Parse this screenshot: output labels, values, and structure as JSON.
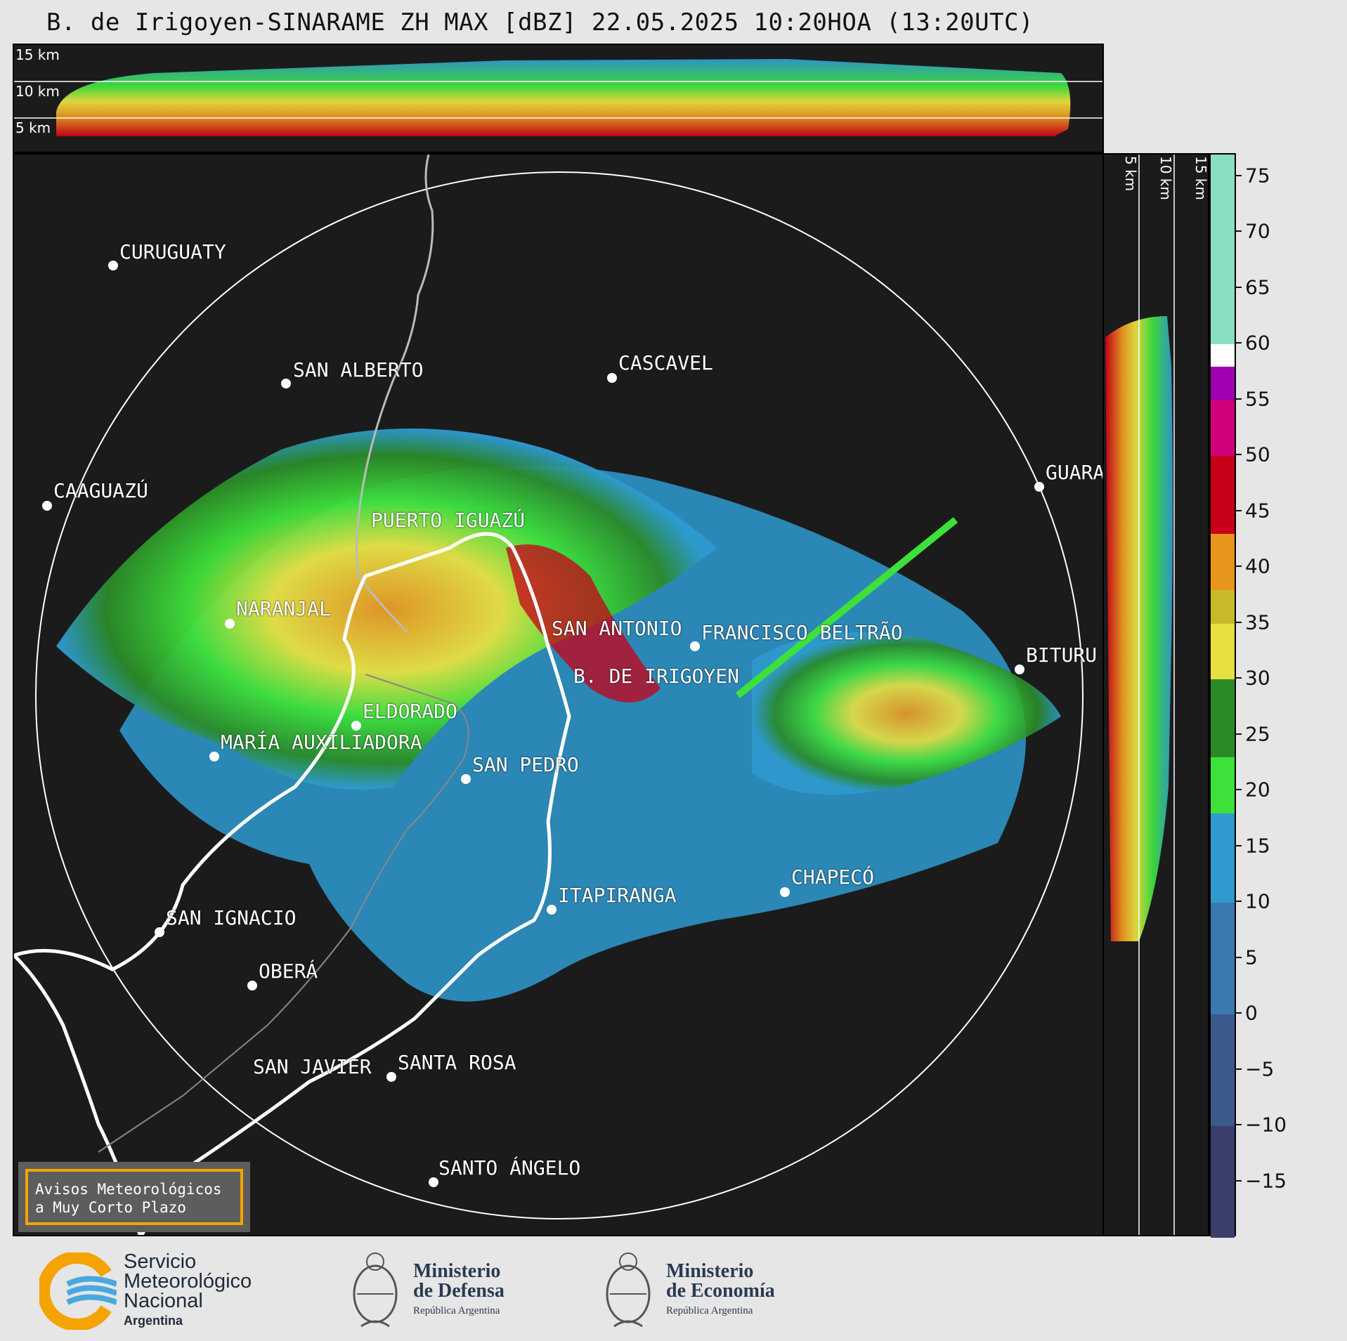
{
  "title": "B. de Irigoyen-SINARAME ZH MAX [dBZ] 22.05.2025 10:20HOA (13:20UTC)",
  "top_section": {
    "labels": [
      "15 km",
      "10 km",
      "5 km"
    ]
  },
  "right_section": {
    "labels": [
      "5 km",
      "10 km",
      "15 km"
    ]
  },
  "cities": [
    {
      "name": "CURUGUATY",
      "lon_lat_hint": "nw"
    },
    {
      "name": "SAN ALBERTO"
    },
    {
      "name": "CASCAVEL"
    },
    {
      "name": "CAAGUAZÚ"
    },
    {
      "name": "GUARA"
    },
    {
      "name": "PUERTO IGUAZÚ"
    },
    {
      "name": "NARANJAL"
    },
    {
      "name": "SAN ANTONIO"
    },
    {
      "name": "FRANCISCO BELTRÃO"
    },
    {
      "name": "BITURU"
    },
    {
      "name": "B. DE IRIGOYEN"
    },
    {
      "name": "ELDORADO"
    },
    {
      "name": "MARÍA AUXILIADORA"
    },
    {
      "name": "SAN PEDRO"
    },
    {
      "name": "CHAPECÓ"
    },
    {
      "name": "ITAPIRANGA"
    },
    {
      "name": "SAN IGNACIO"
    },
    {
      "name": "OBERÁ"
    },
    {
      "name": "SAN JAVIER"
    },
    {
      "name": "SANTA ROSA"
    },
    {
      "name": "SANTO ÁNGELO"
    }
  ],
  "colorbar": {
    "ticks": [
      "75",
      "70",
      "65",
      "60",
      "55",
      "50",
      "45",
      "40",
      "35",
      "30",
      "25",
      "20",
      "15",
      "10",
      "5",
      "0",
      "−5",
      "−10",
      "−15"
    ],
    "tick_values": [
      75,
      70,
      65,
      60,
      55,
      50,
      45,
      40,
      35,
      30,
      25,
      20,
      15,
      10,
      5,
      0,
      -5,
      -10,
      -15
    ],
    "range": [
      -20,
      77
    ],
    "bands": [
      {
        "from": -20,
        "to": -10,
        "color": "#3a3f6b"
      },
      {
        "from": -10,
        "to": 0,
        "color": "#3b5a8c"
      },
      {
        "from": 0,
        "to": 10,
        "color": "#3a78b0"
      },
      {
        "from": 10,
        "to": 18,
        "color": "#2e9ad0"
      },
      {
        "from": 18,
        "to": 23,
        "color": "#3ee03a"
      },
      {
        "from": 23,
        "to": 30,
        "color": "#2a8a28"
      },
      {
        "from": 30,
        "to": 35,
        "color": "#e8e040"
      },
      {
        "from": 35,
        "to": 38,
        "color": "#c8b82a"
      },
      {
        "from": 38,
        "to": 43,
        "color": "#e8951e"
      },
      {
        "from": 43,
        "to": 50,
        "color": "#c80018"
      },
      {
        "from": 50,
        "to": 55,
        "color": "#d0007a"
      },
      {
        "from": 55,
        "to": 58,
        "color": "#a000b0"
      },
      {
        "from": 58,
        "to": 60,
        "color": "#ffffff"
      },
      {
        "from": 60,
        "to": 77,
        "color": "#88e0c0"
      }
    ]
  },
  "warning": {
    "line1": "Avisos Meteorológicos",
    "line2": "a Muy Corto Plazo"
  },
  "footer": {
    "smn": {
      "line1": "Servicio",
      "line2": "Meteorológico",
      "line3": "Nacional",
      "line4": "Argentina"
    },
    "defensa": {
      "line1": "Ministerio",
      "line2": "de Defensa",
      "line3": "República Argentina"
    },
    "economia": {
      "line1": "Ministerio",
      "line2": "de Economía",
      "line3": "República Argentina"
    }
  }
}
